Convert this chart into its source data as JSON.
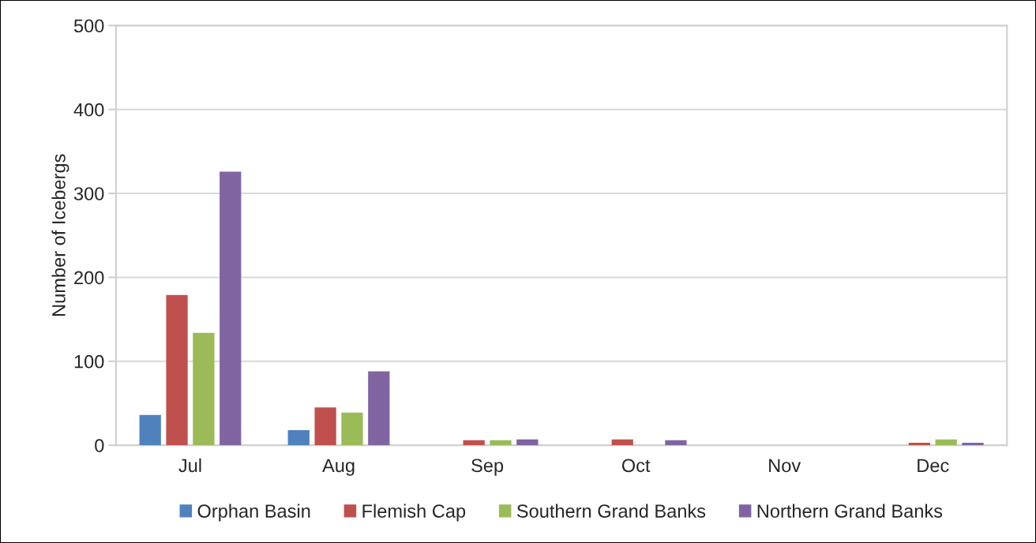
{
  "chart_data": {
    "type": "bar",
    "ylabel": "Number of Icebergs",
    "categories": [
      "Jul",
      "Aug",
      "Sep",
      "Oct",
      "Nov",
      "Dec"
    ],
    "series": [
      {
        "name": "Orphan Basin",
        "color": "#4f81bd",
        "values": [
          36,
          18,
          null,
          null,
          null,
          null
        ]
      },
      {
        "name": "Flemish Cap",
        "color": "#c0504d",
        "values": [
          179,
          45,
          6,
          7,
          null,
          3
        ]
      },
      {
        "name": "Southern Grand Banks",
        "color": "#9bbb59",
        "values": [
          134,
          39,
          6,
          null,
          null,
          7
        ]
      },
      {
        "name": "Northern Grand Banks",
        "color": "#8064a2",
        "values": [
          326,
          88,
          7,
          6,
          null,
          3
        ]
      }
    ],
    "ylim": [
      0,
      500
    ],
    "yticks": [
      0,
      100,
      200,
      300,
      400,
      500
    ],
    "grid": "y",
    "legend": "bottom"
  }
}
